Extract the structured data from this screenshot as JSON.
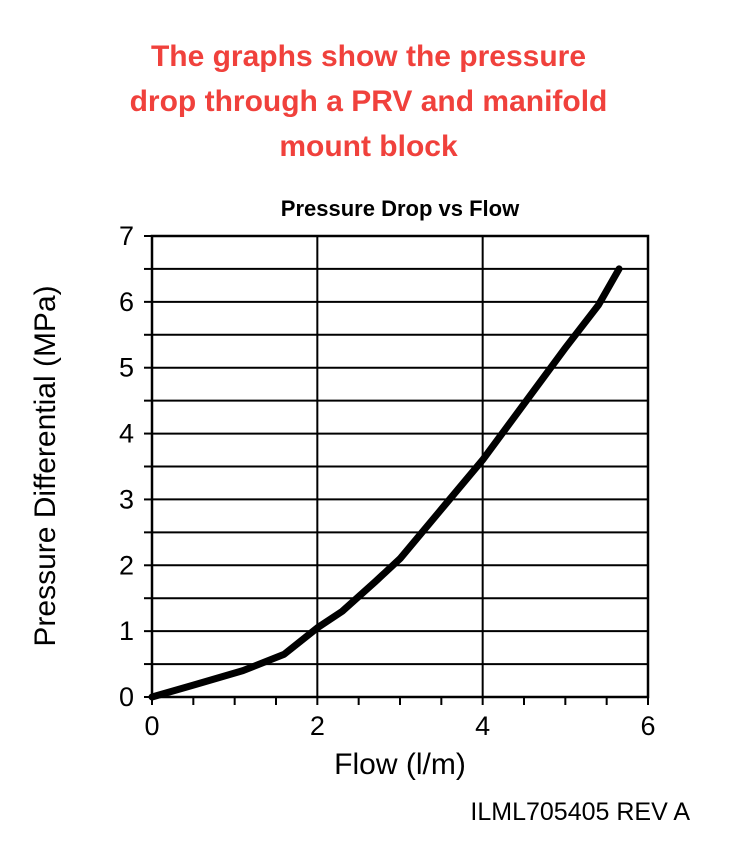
{
  "heading": {
    "lines": [
      "The graphs show the pressure",
      "drop through a PRV and manifold",
      "mount block"
    ],
    "color": "#f0413c"
  },
  "chart_data": {
    "type": "line",
    "title": "Pressure Drop vs Flow",
    "xlabel": "Flow (l/m)",
    "ylabel": "Pressure Differential (MPa)",
    "xlim": [
      0,
      6
    ],
    "ylim": [
      0,
      7
    ],
    "xticks": [
      0,
      2,
      4,
      6
    ],
    "yticks": [
      0,
      1,
      2,
      3,
      4,
      5,
      6,
      7
    ],
    "x_minor_tick_step": 0.5,
    "y_grid_step": 0.5,
    "x_grid_step": 2,
    "grid": true,
    "legend": "none",
    "line_color": "#000000",
    "series": [
      {
        "name": "Pressure drop through PRV and manifold mount block",
        "x": [
          0,
          0.5,
          1.1,
          1.6,
          2.0,
          2.3,
          2.7,
          3.0,
          3.5,
          4.0,
          4.5,
          5.0,
          5.4,
          5.65
        ],
        "y": [
          0,
          0.18,
          0.4,
          0.65,
          1.05,
          1.3,
          1.75,
          2.1,
          2.85,
          3.6,
          4.45,
          5.3,
          5.95,
          6.5
        ]
      }
    ]
  },
  "footer": {
    "doc_ref": "ILML705405 REV A"
  }
}
